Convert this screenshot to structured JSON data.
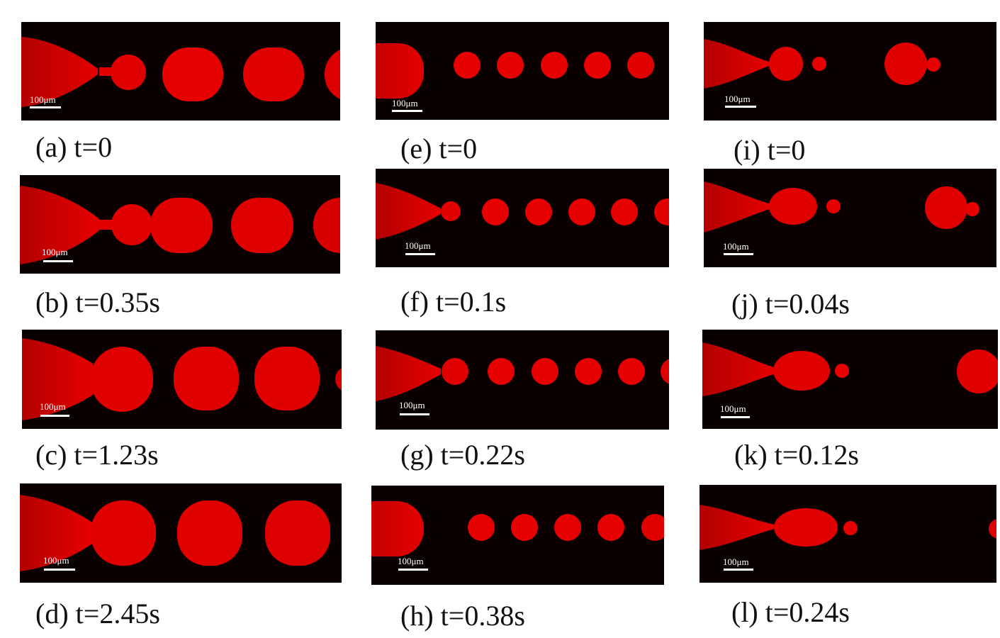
{
  "figure": {
    "scale_label": "100μm",
    "droplet_color": "#e60000",
    "background_color": "#0a0000",
    "panels": [
      {
        "id": "a",
        "caption": "(a) t=0"
      },
      {
        "id": "b",
        "caption": "(b) t=0.35s"
      },
      {
        "id": "c",
        "caption": "(c) t=1.23s"
      },
      {
        "id": "d",
        "caption": "(d) t=2.45s"
      },
      {
        "id": "e",
        "caption": "(e) t=0"
      },
      {
        "id": "f",
        "caption": "(f) t=0.1s"
      },
      {
        "id": "g",
        "caption": "(g) t=0.22s"
      },
      {
        "id": "h",
        "caption": "(h) t=0.38s"
      },
      {
        "id": "i",
        "caption": "(i) t=0"
      },
      {
        "id": "j",
        "caption": "(j) t=0.04s"
      },
      {
        "id": "k",
        "caption": "(k) t=0.12s"
      },
      {
        "id": "l",
        "caption": "(l) t=0.24s"
      }
    ]
  }
}
